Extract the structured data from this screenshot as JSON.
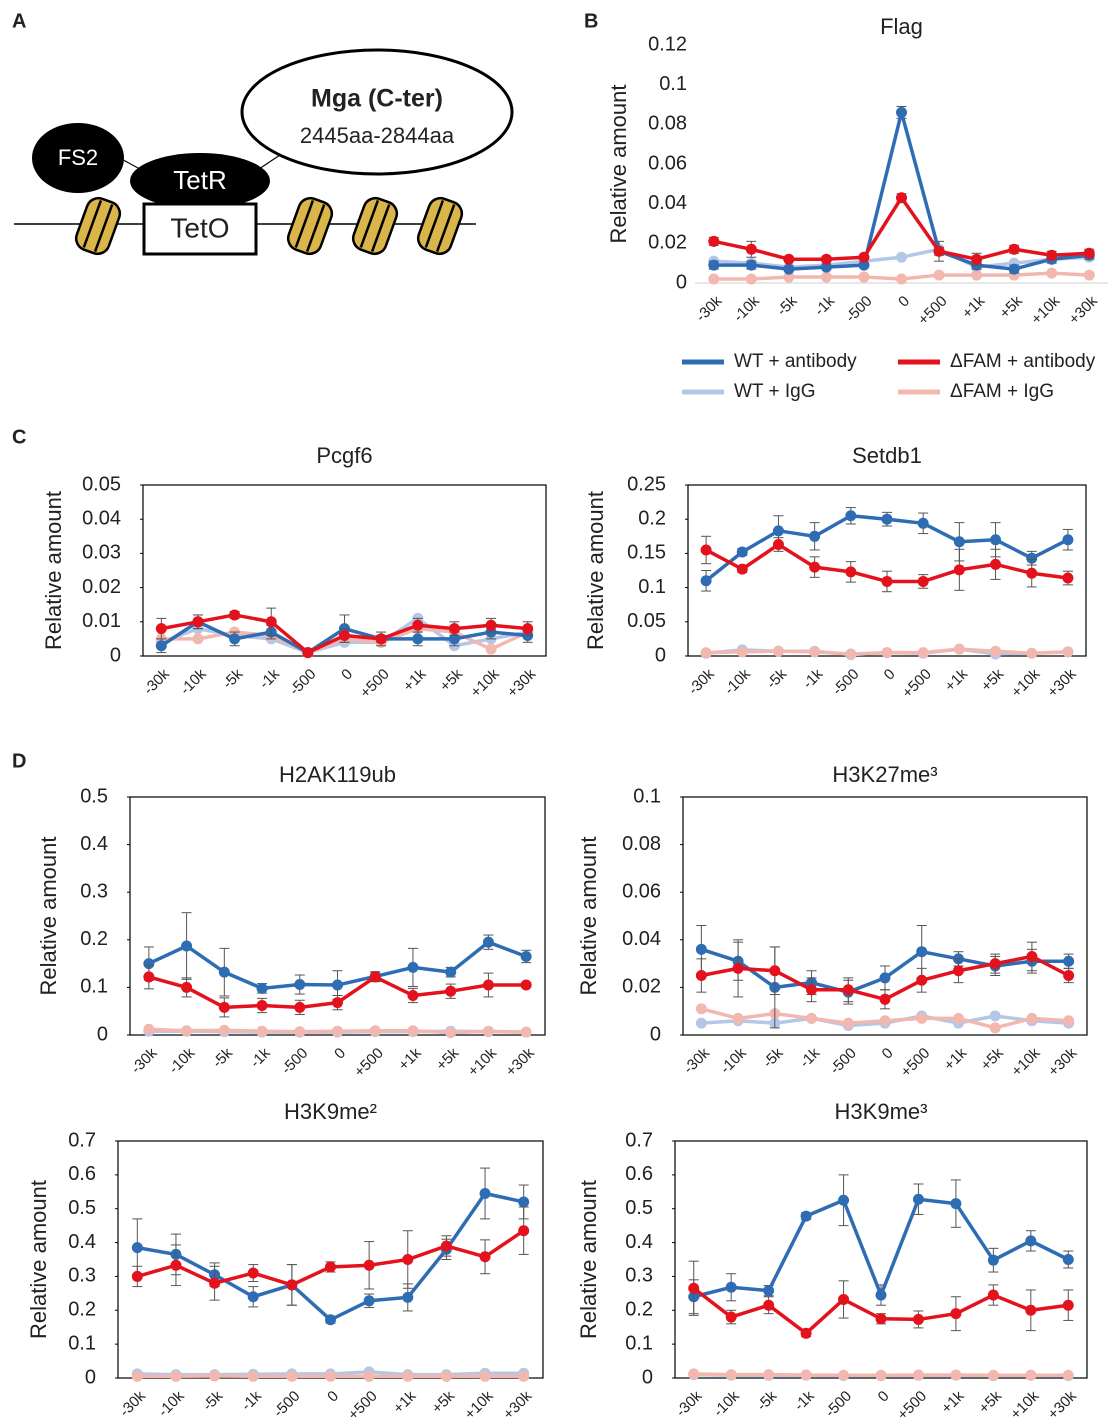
{
  "panels": [
    "A",
    "B",
    "C",
    "D"
  ],
  "diagram": {
    "labels": [
      "Mga (C-ter)",
      "2445aa-2844aa",
      "FS2",
      "TetR",
      "TetO"
    ]
  },
  "chart_data": [
    {
      "type": "line",
      "title": "Flag",
      "y_label": "Relative amount",
      "frame": false,
      "legend": "bottom",
      "categories": [
        "-30k",
        "-10k",
        "-5k",
        "-1k",
        "-500",
        "0",
        "+500",
        "+1k",
        "+5k",
        "+10k",
        "+30k"
      ],
      "ylim": [
        0,
        0.12
      ],
      "yticks": [
        0,
        0.02,
        0.04,
        0.06,
        0.08,
        0.1,
        0.12
      ],
      "series": [
        {
          "name": "WT + antibody",
          "color": "#2e6db4",
          "values": [
            0.009,
            0.009,
            0.007,
            0.008,
            0.009,
            0.086,
            0.016,
            0.009,
            0.007,
            0.012,
            0.014
          ],
          "errors": [
            0.002,
            0.002,
            0.001,
            0.001,
            0.001,
            0.003,
            0.005,
            0.002,
            0.002,
            0.002,
            0.002
          ]
        },
        {
          "name": "WT + IgG",
          "color": "#b4c7e7",
          "values": [
            0.011,
            0.01,
            0.008,
            0.009,
            0.011,
            0.013,
            0.017,
            0.008,
            0.01,
            0.012,
            0.013
          ]
        },
        {
          "name": "ΔFAM + antibody",
          "color": "#e3121c",
          "values": [
            0.021,
            0.017,
            0.012,
            0.012,
            0.013,
            0.043,
            0.016,
            0.012,
            0.017,
            0.014,
            0.015
          ],
          "errors": [
            0.002,
            0.004,
            0.001,
            0.001,
            0.001,
            0.002,
            0.002,
            0.003,
            0.002,
            0.002,
            0.002
          ]
        },
        {
          "name": "ΔFAM + IgG",
          "color": "#f2b8b0",
          "values": [
            0.002,
            0.002,
            0.003,
            0.003,
            0.003,
            0.002,
            0.004,
            0.004,
            0.004,
            0.005,
            0.004
          ]
        }
      ]
    },
    {
      "type": "line",
      "title": "Pcgf6",
      "y_label": "Relative amount",
      "frame": true,
      "categories": [
        "-30k",
        "-10k",
        "-5k",
        "-1k",
        "-500",
        "0",
        "+500",
        "+1k",
        "+5k",
        "+10k",
        "+30k"
      ],
      "ylim": [
        0,
        0.05
      ],
      "yticks": [
        0,
        0.01,
        0.02,
        0.03,
        0.04,
        0.05
      ],
      "series": [
        {
          "color": "#2e6db4",
          "values": [
            0.003,
            0.01,
            0.005,
            0.007,
            0.001,
            0.008,
            0.005,
            0.005,
            0.005,
            0.007,
            0.006
          ],
          "errors": [
            0.002,
            0.002,
            0.002,
            0.002,
            0.001,
            0.004,
            0.002,
            0.002,
            0.002,
            0.002,
            0.002
          ]
        },
        {
          "color": "#b4c7e7",
          "values": [
            0.004,
            0.008,
            0.006,
            0.005,
            0.001,
            0.004,
            0.004,
            0.011,
            0.003,
            0.005,
            0.007
          ]
        },
        {
          "color": "#e3121c",
          "values": [
            0.008,
            0.01,
            0.012,
            0.01,
            0.001,
            0.006,
            0.005,
            0.009,
            0.008,
            0.009,
            0.008
          ],
          "errors": [
            0.003,
            0.002,
            0.001,
            0.004,
            0.001,
            0.002,
            0.001,
            0.002,
            0.002,
            0.002,
            0.002
          ]
        },
        {
          "color": "#f2b8b0",
          "values": [
            0.005,
            0.005,
            0.007,
            0.006,
            0.001,
            0.005,
            0.004,
            0.008,
            0.007,
            0.002,
            0.007
          ]
        }
      ]
    },
    {
      "type": "line",
      "title": "Setdb1",
      "y_label": "Relative amount",
      "frame": true,
      "categories": [
        "-30k",
        "-10k",
        "-5k",
        "-1k",
        "-500",
        "0",
        "+500",
        "+1k",
        "+5k",
        "+10k",
        "+30k"
      ],
      "ylim": [
        0,
        0.25
      ],
      "yticks": [
        0,
        0.05,
        0.1,
        0.15,
        0.2,
        0.25
      ],
      "series": [
        {
          "color": "#2e6db4",
          "values": [
            0.11,
            0.152,
            0.183,
            0.175,
            0.205,
            0.2,
            0.194,
            0.167,
            0.17,
            0.143,
            0.17
          ],
          "errors": [
            0.015,
            0.005,
            0.022,
            0.02,
            0.012,
            0.01,
            0.015,
            0.028,
            0.025,
            0.01,
            0.015
          ]
        },
        {
          "color": "#b4c7e7",
          "values": [
            0.004,
            0.009,
            0.007,
            0.007,
            0.002,
            0.005,
            0.004,
            0.01,
            0.003,
            0.004,
            0.006
          ]
        },
        {
          "color": "#e3121c",
          "values": [
            0.155,
            0.127,
            0.163,
            0.13,
            0.123,
            0.109,
            0.109,
            0.126,
            0.134,
            0.121,
            0.114
          ],
          "errors": [
            0.02,
            0.005,
            0.01,
            0.015,
            0.015,
            0.015,
            0.01,
            0.03,
            0.022,
            0.02,
            0.01
          ]
        },
        {
          "color": "#f2b8b0",
          "values": [
            0.005,
            0.006,
            0.007,
            0.006,
            0.003,
            0.005,
            0.005,
            0.01,
            0.007,
            0.004,
            0.006
          ]
        }
      ]
    },
    {
      "type": "line",
      "title": "H2AK119ub",
      "y_label": "Relative amount",
      "frame": true,
      "categories": [
        "-30k",
        "-10k",
        "-5k",
        "-1k",
        "-500",
        "0",
        "+500",
        "+1k",
        "+5k",
        "+10k",
        "+30k"
      ],
      "ylim": [
        0,
        0.5
      ],
      "yticks": [
        0,
        0.1,
        0.2,
        0.3,
        0.4,
        0.5
      ],
      "series": [
        {
          "color": "#2e6db4",
          "values": [
            0.15,
            0.187,
            0.132,
            0.098,
            0.106,
            0.105,
            0.123,
            0.142,
            0.132,
            0.195,
            0.165
          ],
          "errors": [
            0.035,
            0.07,
            0.05,
            0.01,
            0.02,
            0.03,
            0.01,
            0.04,
            0.01,
            0.015,
            0.013
          ]
        },
        {
          "color": "#b4c7e7",
          "values": [
            0.008,
            0.008,
            0.007,
            0.006,
            0.006,
            0.006,
            0.007,
            0.007,
            0.008,
            0.007,
            0.006
          ]
        },
        {
          "color": "#e3121c",
          "values": [
            0.122,
            0.1,
            0.058,
            0.062,
            0.058,
            0.068,
            0.122,
            0.083,
            0.092,
            0.105,
            0.105
          ],
          "errors": [
            0.025,
            0.02,
            0.02,
            0.015,
            0.015,
            0.015,
            0.01,
            0.015,
            0.015,
            0.025,
            0.005
          ]
        },
        {
          "color": "#f2b8b0",
          "values": [
            0.012,
            0.009,
            0.01,
            0.008,
            0.007,
            0.008,
            0.009,
            0.009,
            0.005,
            0.008,
            0.006
          ]
        }
      ]
    },
    {
      "type": "line",
      "title": "H3K27me³",
      "y_label": "Relative amount",
      "frame": true,
      "categories": [
        "-30k",
        "-10k",
        "-5k",
        "-1k",
        "-500",
        "0",
        "+500",
        "+1k",
        "+5k",
        "+10k",
        "+30k"
      ],
      "ylim": [
        0,
        0.1
      ],
      "yticks": [
        0,
        0.02,
        0.04,
        0.06,
        0.08,
        0.1
      ],
      "series": [
        {
          "color": "#2e6db4",
          "values": [
            0.036,
            0.031,
            0.02,
            0.022,
            0.018,
            0.024,
            0.035,
            0.032,
            0.029,
            0.031,
            0.031
          ],
          "errors": [
            0.01,
            0.008,
            0.017,
            0.005,
            0.005,
            0.005,
            0.011,
            0.003,
            0.004,
            0.005,
            0.003
          ]
        },
        {
          "color": "#b4c7e7",
          "values": [
            0.005,
            0.006,
            0.005,
            0.007,
            0.004,
            0.005,
            0.008,
            0.005,
            0.008,
            0.006,
            0.005
          ]
        },
        {
          "color": "#e3121c",
          "values": [
            0.025,
            0.028,
            0.027,
            0.019,
            0.019,
            0.015,
            0.023,
            0.027,
            0.03,
            0.033,
            0.025
          ],
          "errors": [
            0.007,
            0.012,
            0.01,
            0.005,
            0.005,
            0.004,
            0.005,
            0.005,
            0.004,
            0.006,
            0.003
          ]
        },
        {
          "color": "#f2b8b0",
          "values": [
            0.011,
            0.007,
            0.009,
            0.007,
            0.005,
            0.006,
            0.007,
            0.007,
            0.003,
            0.007,
            0.006
          ]
        }
      ]
    },
    {
      "type": "line",
      "title": "H3K9me²",
      "y_label": "Relative amount",
      "frame": true,
      "categories": [
        "-30k",
        "-10k",
        "-5k",
        "-1k",
        "-500",
        "0",
        "+500",
        "+1k",
        "+5k",
        "+10k",
        "+30k"
      ],
      "ylim": [
        0,
        0.7
      ],
      "yticks": [
        0,
        0.1,
        0.2,
        0.3,
        0.4,
        0.5,
        0.6,
        0.7
      ],
      "series": [
        {
          "color": "#2e6db4",
          "values": [
            0.385,
            0.365,
            0.305,
            0.24,
            0.275,
            0.172,
            0.228,
            0.238,
            0.38,
            0.545,
            0.52
          ],
          "errors": [
            0.085,
            0.06,
            0.035,
            0.03,
            0.06,
            0.01,
            0.02,
            0.04,
            0.03,
            0.075,
            0.05
          ]
        },
        {
          "color": "#b4c7e7",
          "values": [
            0.012,
            0.01,
            0.01,
            0.011,
            0.012,
            0.012,
            0.018,
            0.01,
            0.01,
            0.014,
            0.014
          ]
        },
        {
          "color": "#e3121c",
          "values": [
            0.3,
            0.333,
            0.28,
            0.31,
            0.275,
            0.328,
            0.333,
            0.35,
            0.39,
            0.358,
            0.435
          ],
          "errors": [
            0.03,
            0.06,
            0.05,
            0.025,
            0.06,
            0.015,
            0.07,
            0.085,
            0.03,
            0.05,
            0.07
          ]
        },
        {
          "color": "#f2b8b0",
          "values": [
            0.005,
            0.005,
            0.006,
            0.005,
            0.005,
            0.005,
            0.005,
            0.005,
            0.005,
            0.005,
            0.005
          ]
        }
      ]
    },
    {
      "type": "line",
      "title": "H3K9me³",
      "y_label": "Relative amount",
      "frame": true,
      "categories": [
        "-30k",
        "-10k",
        "-5k",
        "-1k",
        "-500",
        "0",
        "+500",
        "+1k",
        "+5k",
        "+10k",
        "+30k"
      ],
      "ylim": [
        0,
        0.7
      ],
      "yticks": [
        0,
        0.1,
        0.2,
        0.3,
        0.4,
        0.5,
        0.6,
        0.7
      ],
      "series": [
        {
          "color": "#2e6db4",
          "values": [
            0.24,
            0.268,
            0.258,
            0.478,
            0.525,
            0.245,
            0.528,
            0.515,
            0.348,
            0.405,
            0.35
          ],
          "errors": [
            0.05,
            0.04,
            0.015,
            0.01,
            0.075,
            0.03,
            0.045,
            0.07,
            0.035,
            0.03,
            0.025
          ]
        },
        {
          "color": "#b4c7e7",
          "values": [
            0.01,
            0.008,
            0.008,
            0.008,
            0.007,
            0.007,
            0.008,
            0.008,
            0.007,
            0.008,
            0.007
          ]
        },
        {
          "color": "#e3121c",
          "values": [
            0.265,
            0.18,
            0.215,
            0.132,
            0.232,
            0.175,
            0.173,
            0.19,
            0.245,
            0.2,
            0.215
          ],
          "errors": [
            0.08,
            0.02,
            0.025,
            0.01,
            0.055,
            0.015,
            0.025,
            0.05,
            0.03,
            0.06,
            0.045
          ]
        },
        {
          "color": "#f2b8b0",
          "values": [
            0.012,
            0.01,
            0.01,
            0.009,
            0.008,
            0.008,
            0.009,
            0.009,
            0.008,
            0.008,
            0.008
          ]
        }
      ]
    }
  ]
}
